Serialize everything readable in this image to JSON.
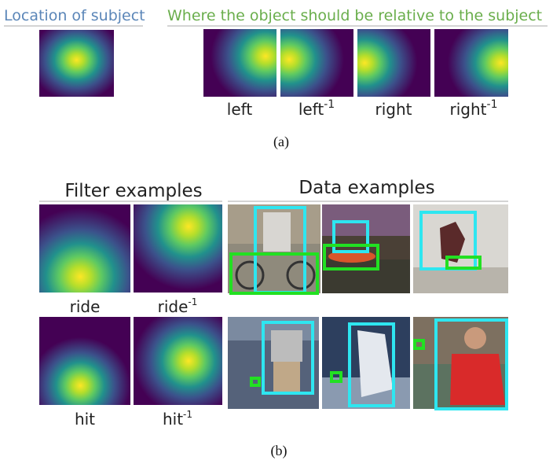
{
  "panel_a": {
    "subject_title": "Location of subject",
    "object_title": "Where the object should be relative to the subject",
    "labels": [
      {
        "text": "left"
      },
      {
        "text": "left",
        "sup": "-1"
      },
      {
        "text": "right"
      },
      {
        "text": "right",
        "sup": "-1"
      }
    ],
    "caption": "(a)"
  },
  "panel_b": {
    "filter_title": "Filter examples",
    "data_title": "Data examples",
    "rows": [
      {
        "filters": [
          {
            "text": "ride"
          },
          {
            "text": "ride",
            "sup": "-1"
          }
        ]
      },
      {
        "filters": [
          {
            "text": "hit"
          },
          {
            "text": "hit",
            "sup": "-1"
          }
        ]
      }
    ],
    "caption": "(b)"
  }
}
